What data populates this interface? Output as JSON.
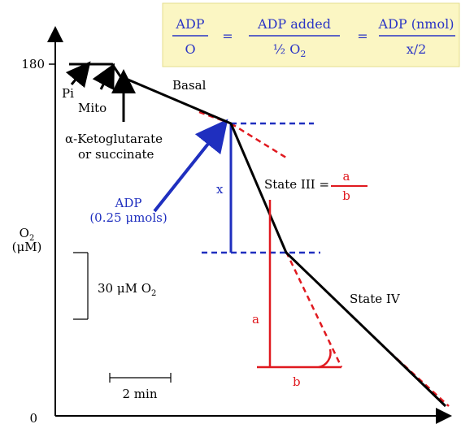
{
  "colors": {
    "trace": "#000000",
    "adp": "#1f2fbf",
    "state3": "#e0191f",
    "formula_bg": "#fbf6c3",
    "formula_text": "#2b35c5"
  },
  "formula": {
    "lhs_num": "ADP",
    "lhs_den": "O",
    "eq1": "=",
    "mid_num": "ADP added",
    "mid_den": "½ O",
    "mid_den_sub": "2",
    "eq2": "=",
    "rhs_num": "ADP (nmol)",
    "rhs_den": "x/2"
  },
  "axes": {
    "y_label": "O",
    "y_label_sub": "2",
    "y_unit": "(μM)",
    "y_top_tick": "180",
    "y_zero": "0"
  },
  "labels": {
    "pi": "Pi",
    "mito": "Mito",
    "substrate_line1": "α-Ketoglutarate",
    "substrate_line2": "or succinate",
    "basal": "Basal",
    "x": "x",
    "adp": "ADP",
    "adp_amount": "(0.25 μmols)",
    "state3": "State III =",
    "state3_num": "a",
    "state3_den": "b",
    "state4": "State IV",
    "a": "a",
    "b": "b"
  },
  "scale_bars": {
    "o2_text": "30 μM O",
    "o2_sub": "2",
    "time": "2 min"
  }
}
